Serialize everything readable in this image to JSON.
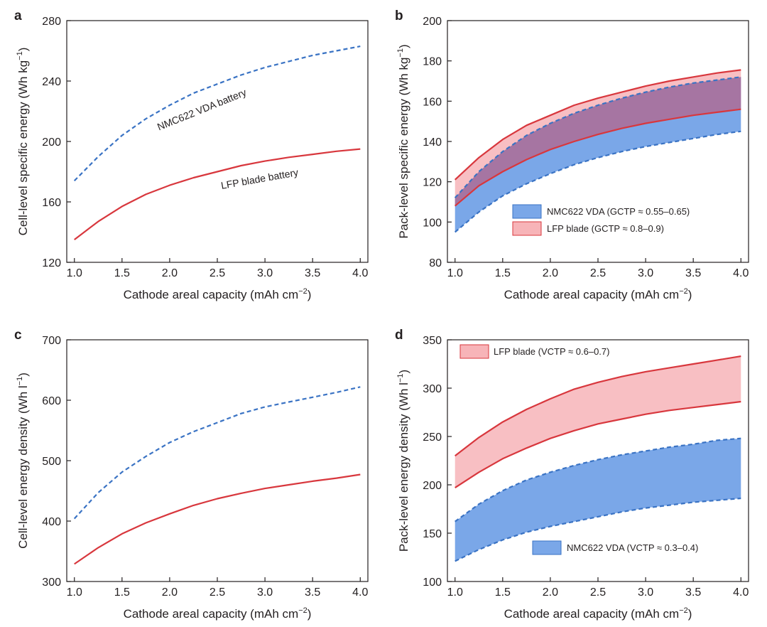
{
  "colors": {
    "nmc_line": "#3a73c4",
    "nmc_fill": "#7aa7e8",
    "lfp_line": "#d8373d",
    "lfp_fill": "#f7b4b8",
    "overlap_fill": "#9e6e9e"
  },
  "chart_data": [
    {
      "panel": "a",
      "type": "line",
      "xlabel": "Cathode areal capacity (mAh cm",
      "xlabel_sup": "−2",
      "xlabel_end": ")",
      "ylabel": "Cell-level specific energy (Wh kg",
      "ylabel_sup": "−1",
      "ylabel_end": ")",
      "xlim": [
        0.92,
        4.08
      ],
      "ylim": [
        120,
        280
      ],
      "xticks": [
        1.0,
        1.5,
        2.0,
        2.5,
        3.0,
        3.5,
        4.0
      ],
      "xtick_labels": [
        "1.0",
        "1.5",
        "2.0",
        "2.5",
        "3.0",
        "3.5",
        "4.0"
      ],
      "yticks": [
        120,
        160,
        200,
        240,
        280
      ],
      "ytick_labels": [
        "120",
        "160",
        "200",
        "240",
        "280"
      ],
      "x": [
        1.0,
        1.25,
        1.5,
        1.75,
        2.0,
        2.25,
        2.5,
        2.75,
        3.0,
        3.25,
        3.5,
        3.75,
        4.0
      ],
      "series": [
        {
          "name": "NMC622 VDA battery",
          "style": "dashed",
          "color": "#3a73c4",
          "values": [
            174,
            190,
            204,
            215,
            224,
            232,
            238,
            244,
            249,
            253,
            257,
            260,
            263
          ],
          "label_rotation": -22
        },
        {
          "name": "LFP blade battery",
          "style": "solid",
          "color": "#d8373d",
          "values": [
            135,
            147,
            157,
            165,
            171,
            176,
            180,
            184,
            187,
            189.5,
            191.5,
            193.5,
            195
          ],
          "label_rotation": -10
        }
      ],
      "annotations": [
        {
          "text": "NMC622 VDA battery",
          "x": 2.35,
          "y": 219
        },
        {
          "text": "LFP blade battery",
          "x": 2.95,
          "y": 173
        }
      ]
    },
    {
      "panel": "b",
      "type": "area",
      "xlabel": "Cathode areal capacity (mAh cm",
      "xlabel_sup": "−2",
      "xlabel_end": ")",
      "ylabel": "Pack-level specific energy (Wh kg",
      "ylabel_sup": "−1",
      "ylabel_end": ")",
      "xlim": [
        0.92,
        4.08
      ],
      "ylim": [
        80,
        200
      ],
      "xticks": [
        1.0,
        1.5,
        2.0,
        2.5,
        3.0,
        3.5,
        4.0
      ],
      "xtick_labels": [
        "1.0",
        "1.5",
        "2.0",
        "2.5",
        "3.0",
        "3.5",
        "4.0"
      ],
      "yticks": [
        80,
        100,
        120,
        140,
        160,
        180,
        200
      ],
      "ytick_labels": [
        "80",
        "100",
        "120",
        "140",
        "160",
        "180",
        "200"
      ],
      "x": [
        1.0,
        1.25,
        1.5,
        1.75,
        2.0,
        2.25,
        2.5,
        2.75,
        3.0,
        3.25,
        3.5,
        3.75,
        4.0
      ],
      "legend_position": "lower-right",
      "series": [
        {
          "name": "NMC622 VDA (GCTP ≈ 0.55–0.65)",
          "style": "dashed",
          "upper": [
            112,
            125,
            135,
            143,
            149,
            154,
            158,
            161.5,
            164.5,
            167,
            169,
            170.5,
            172
          ],
          "lower": [
            95,
            105,
            113,
            119,
            124,
            128.5,
            132,
            135,
            137.5,
            139.5,
            141.5,
            143.5,
            145
          ]
        },
        {
          "name": "LFP blade (GCTP ≈ 0.8–0.9)",
          "style": "solid",
          "upper": [
            121,
            132,
            141,
            148,
            153,
            158,
            161.5,
            164.5,
            167.5,
            170,
            172,
            174,
            175.5
          ],
          "lower": [
            108,
            118,
            125,
            131,
            136,
            140,
            143.5,
            146.5,
            149,
            151,
            153,
            154.5,
            156
          ]
        }
      ]
    },
    {
      "panel": "c",
      "type": "line",
      "xlabel": "Cathode areal capacity (mAh cm",
      "xlabel_sup": "−2",
      "xlabel_end": ")",
      "ylabel": "Cell-level energy density (Wh l",
      "ylabel_sup": "−1",
      "ylabel_end": ")",
      "xlim": [
        0.92,
        4.08
      ],
      "ylim": [
        300,
        700
      ],
      "xticks": [
        1.0,
        1.5,
        2.0,
        2.5,
        3.0,
        3.5,
        4.0
      ],
      "xtick_labels": [
        "1.0",
        "1.5",
        "2.0",
        "2.5",
        "3.0",
        "3.5",
        "4.0"
      ],
      "yticks": [
        300,
        400,
        500,
        600,
        700
      ],
      "ytick_labels": [
        "300",
        "400",
        "500",
        "600",
        "700"
      ],
      "x": [
        1.0,
        1.25,
        1.5,
        1.75,
        2.0,
        2.25,
        2.5,
        2.75,
        3.0,
        3.25,
        3.5,
        3.75,
        4.0
      ],
      "series": [
        {
          "name": "NMC622 VDA battery",
          "style": "dashed",
          "color": "#3a73c4",
          "values": [
            404,
            447,
            481,
            507,
            530,
            548,
            563,
            578,
            589,
            597,
            605,
            613,
            622
          ]
        },
        {
          "name": "LFP blade battery",
          "style": "solid",
          "color": "#d8373d",
          "values": [
            329,
            356,
            379,
            397,
            412,
            426,
            437,
            446,
            454,
            460,
            466,
            471,
            477
          ]
        }
      ]
    },
    {
      "panel": "d",
      "type": "area",
      "xlabel": "Cathode areal capacity (mAh cm",
      "xlabel_sup": "−2",
      "xlabel_end": ")",
      "ylabel": "Pack-level energy density (Wh l",
      "ylabel_sup": "−1",
      "ylabel_end": ")",
      "xlim": [
        0.92,
        4.08
      ],
      "ylim": [
        100,
        350
      ],
      "xticks": [
        1.0,
        1.5,
        2.0,
        2.5,
        3.0,
        3.5,
        4.0
      ],
      "xtick_labels": [
        "1.0",
        "1.5",
        "2.0",
        "2.5",
        "3.0",
        "3.5",
        "4.0"
      ],
      "yticks": [
        100,
        150,
        200,
        250,
        300,
        350
      ],
      "ytick_labels": [
        "100",
        "150",
        "200",
        "250",
        "300",
        "350"
      ],
      "x": [
        1.0,
        1.25,
        1.5,
        1.75,
        2.0,
        2.25,
        2.5,
        2.75,
        3.0,
        3.25,
        3.5,
        3.75,
        4.0
      ],
      "series": [
        {
          "name": "LFP blade (VCTP ≈ 0.6–0.7)",
          "style": "solid",
          "upper": [
            230,
            249,
            265,
            278,
            289,
            299,
            306,
            312,
            317,
            321,
            325,
            329,
            333
          ],
          "lower": [
            197,
            213,
            227,
            238,
            248,
            256,
            263,
            268,
            273,
            277,
            280,
            283,
            286
          ]
        },
        {
          "name": "NMC622 VDA (VCTP ≈ 0.3–0.4)",
          "style": "dashed",
          "upper": [
            162,
            180,
            194,
            205,
            213,
            220,
            226,
            231,
            235,
            239,
            242,
            246,
            248
          ],
          "lower": [
            121,
            133,
            143,
            151,
            157,
            162,
            167,
            172,
            176,
            179,
            182,
            184,
            186
          ]
        }
      ]
    }
  ]
}
